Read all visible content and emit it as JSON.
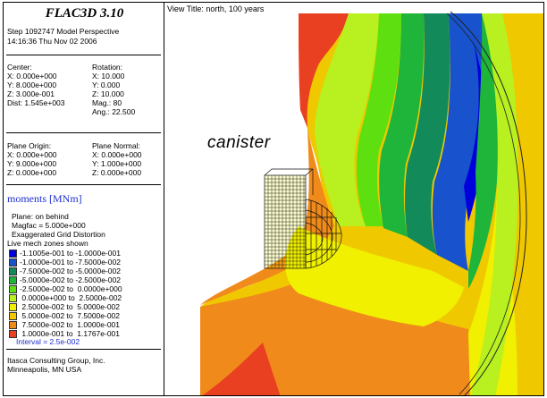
{
  "sidebar": {
    "title": "FLAC3D 3.10",
    "step_line": "Step 1092747  Model Perspective",
    "time_line": "14:16:36 Thu Nov 02 2006",
    "center": {
      "label": "Center:",
      "x": "X: 0.000e+000",
      "y": "Y: 8.000e+000",
      "z": "Z: 3.000e-001",
      "dist": "Dist: 1.545e+003"
    },
    "rotation": {
      "label": "Rotation:",
      "x": "X:  10.000",
      "y": "Y:   0.000",
      "z": "Z:  10.000",
      "mag": "Mag.:      80",
      "ang": "Ang.:  22.500"
    },
    "plane_origin": {
      "label": "Plane Origin:",
      "x": "X: 0.000e+000",
      "y": "Y: 9.000e+000",
      "z": "Z: 0.000e+000"
    },
    "plane_normal": {
      "label": "Plane Normal:",
      "x": "X: 0.000e+000",
      "y": "Y: 1.000e+000",
      "z": "Z: 0.000e+000"
    },
    "moments_title": "moments [MNm]",
    "plane_on": "Plane: on behind",
    "magfac": "Magfac =  5.000e+000",
    "exaggerated": "Exaggerated Grid Distortion",
    "live_mech": "Live mech zones shown",
    "legend": [
      {
        "label": "-1.1005e-001 to -1.0000e-001",
        "color": "#0000dc"
      },
      {
        "label": "-1.0000e-001 to -7.5000e-002",
        "color": "#1852cc"
      },
      {
        "label": "-7.5000e-002 to -5.0000e-002",
        "color": "#138a5a"
      },
      {
        "label": "-5.0000e-002 to -2.5000e-002",
        "color": "#1fb43a"
      },
      {
        "label": "-2.5000e-002 to  0.0000e+000",
        "color": "#5ee010"
      },
      {
        "label": " 0.0000e+000 to  2.5000e-002",
        "color": "#b8f020"
      },
      {
        "label": " 2.5000e-002 to  5.0000e-002",
        "color": "#f0f000"
      },
      {
        "label": " 5.0000e-002 to  7.5000e-002",
        "color": "#f0c800"
      },
      {
        "label": " 7.5000e-002 to  1.0000e-001",
        "color": "#f08a1a"
      },
      {
        "label": " 1.0000e-001 to  1.1767e-001",
        "color": "#e84020"
      }
    ],
    "interval": "Interval =  2.5e-002",
    "company": "Itasca Consulting Group, Inc.",
    "location": "Minneapolis, MN  USA"
  },
  "viewport": {
    "view_title": "View Title: north, 100 years",
    "annotation": "canister"
  }
}
